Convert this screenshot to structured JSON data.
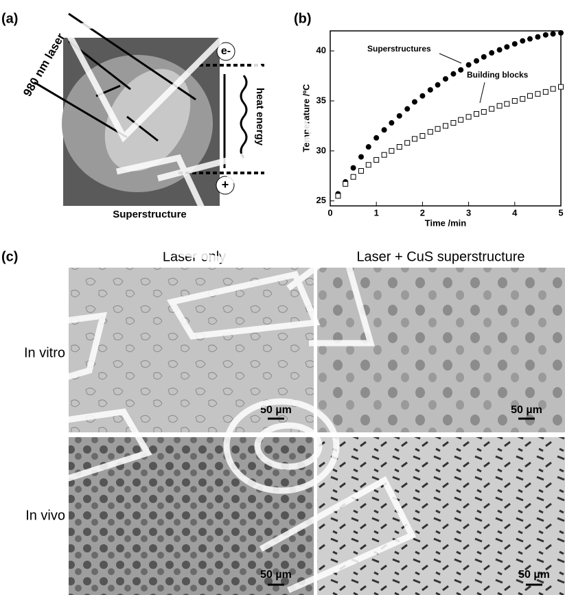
{
  "panels": {
    "a": {
      "label": "(a)",
      "laser": "980 nm laser",
      "electron": "e-",
      "hole": "+",
      "heat": "heat energy",
      "caption": "Superstructure"
    },
    "c": {
      "label": "(c)",
      "columns": [
        "Laser only",
        "Laser + CuS superstructure"
      ],
      "rows": [
        "In vitro",
        "In vivo"
      ],
      "scale_bars": [
        "50 µm",
        "50 µm",
        "50 µm",
        "50 µm"
      ]
    }
  },
  "chart_data": {
    "type": "scatter",
    "label": "(b)",
    "x_label": "Time /min",
    "y_label": "Temperature /ºC",
    "x": [
      0.17,
      0.33,
      0.5,
      0.67,
      0.83,
      1.0,
      1.17,
      1.33,
      1.5,
      1.67,
      1.83,
      2.0,
      2.17,
      2.33,
      2.5,
      2.67,
      2.83,
      3.0,
      3.17,
      3.33,
      3.5,
      3.67,
      3.83,
      4.0,
      4.17,
      4.33,
      4.5,
      4.67,
      4.83,
      5.0
    ],
    "series": [
      {
        "name": "Superstructures",
        "color": "#000000",
        "marker": "filled-circle",
        "values": [
          25.7,
          26.9,
          28.3,
          29.4,
          30.4,
          31.3,
          32.1,
          32.8,
          33.5,
          34.2,
          34.9,
          35.5,
          36.1,
          36.6,
          37.2,
          37.7,
          38.1,
          38.6,
          39.0,
          39.4,
          39.8,
          40.1,
          40.4,
          40.7,
          41.0,
          41.2,
          41.4,
          41.6,
          41.7,
          41.8
        ]
      },
      {
        "name": "Building blocks",
        "color": "#000000",
        "marker": "open-square",
        "values": [
          25.5,
          26.7,
          27.4,
          28.0,
          28.6,
          29.1,
          29.6,
          30.0,
          30.4,
          30.8,
          31.2,
          31.5,
          31.9,
          32.2,
          32.5,
          32.8,
          33.1,
          33.4,
          33.7,
          33.9,
          34.2,
          34.5,
          34.7,
          35.0,
          35.2,
          35.5,
          35.7,
          35.9,
          36.2,
          36.4
        ]
      }
    ],
    "xlim": [
      0,
      5
    ],
    "xticks": [
      0,
      1,
      2,
      3,
      4,
      5
    ],
    "ylim": [
      24.5,
      42
    ],
    "yticks": [
      25,
      30,
      35,
      40
    ]
  }
}
